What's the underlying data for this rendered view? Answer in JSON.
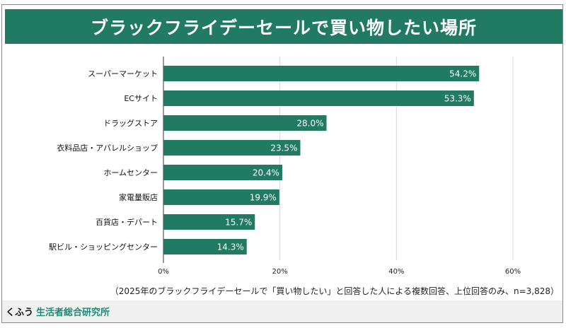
{
  "title": "ブラックフライデーセールで買い物したい場所",
  "footnote": "（2025年のブラックフライデーセールで「買い物したい」と回答した人による複数回答、上位回答のみ、n=3,828）",
  "footer": {
    "brand": "くふう",
    "org": "生活者総合研究所"
  },
  "colors": {
    "bar": "#217a62",
    "title_bg": "#217a62",
    "brand": "#1e8a72"
  },
  "chart_data": {
    "type": "bar",
    "orientation": "horizontal",
    "title": "ブラックフライデーセールで買い物したい場所",
    "categories": [
      "スーパーマーケット",
      "ECサイト",
      "ドラッグストア",
      "衣料品店・アパレルショップ",
      "ホームセンター",
      "家電量販店",
      "百貨店・デパート",
      "駅ビル・ショッピングセンター"
    ],
    "values": [
      54.2,
      53.3,
      28.0,
      23.5,
      20.4,
      19.9,
      15.7,
      14.3
    ],
    "value_labels": [
      "54.2%",
      "53.3%",
      "28.0%",
      "23.5%",
      "20.4%",
      "19.9%",
      "15.7%",
      "14.3%"
    ],
    "xlim": [
      0,
      60
    ],
    "ticks": [
      0,
      20,
      40,
      60
    ],
    "tick_labels": [
      "0%",
      "20%",
      "40%",
      "60%"
    ],
    "grid": true,
    "xlabel": "",
    "ylabel": ""
  }
}
